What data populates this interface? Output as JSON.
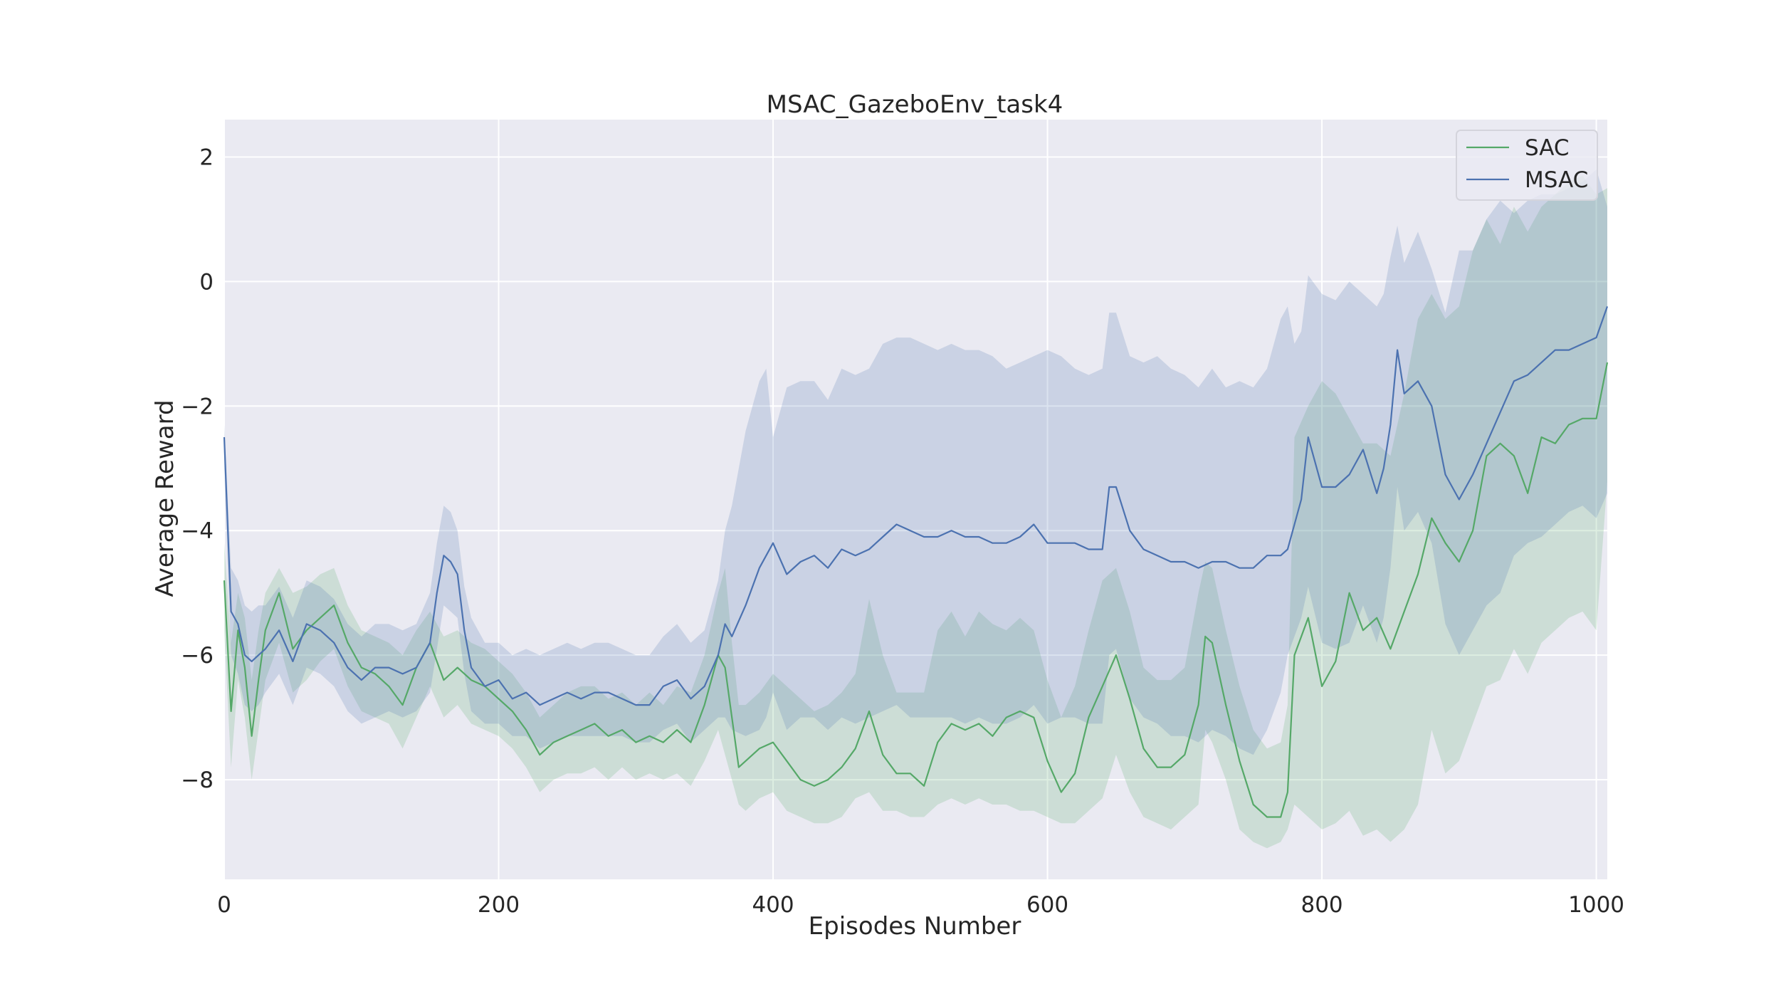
{
  "chart_data": {
    "type": "line",
    "title": "MSAC_GazeboEnv_task4",
    "xlabel": "Episodes Number",
    "ylabel": "Average Reward",
    "xlim": [
      0,
      1008
    ],
    "ylim": [
      -9.6,
      2.6
    ],
    "xticks": [
      0,
      200,
      400,
      600,
      800,
      1000
    ],
    "yticks": [
      -8,
      -6,
      -4,
      -2,
      0,
      2
    ],
    "grid": true,
    "legend_position": "top-right",
    "series": [
      {
        "name": "SAC",
        "color": "#55a868",
        "x": [
          0,
          5,
          10,
          15,
          20,
          25,
          30,
          40,
          50,
          60,
          70,
          80,
          90,
          100,
          110,
          120,
          130,
          140,
          150,
          160,
          170,
          180,
          190,
          200,
          210,
          220,
          230,
          240,
          250,
          260,
          270,
          280,
          290,
          300,
          310,
          320,
          330,
          340,
          350,
          360,
          365,
          370,
          375,
          380,
          390,
          400,
          410,
          420,
          430,
          440,
          450,
          460,
          470,
          480,
          490,
          500,
          510,
          520,
          530,
          540,
          550,
          560,
          570,
          580,
          590,
          600,
          610,
          620,
          630,
          640,
          650,
          660,
          670,
          680,
          690,
          700,
          710,
          715,
          720,
          730,
          740,
          750,
          760,
          770,
          775,
          780,
          790,
          800,
          810,
          820,
          830,
          840,
          850,
          860,
          870,
          880,
          890,
          900,
          910,
          920,
          930,
          940,
          950,
          960,
          970,
          980,
          990,
          1000,
          1008
        ],
        "values": [
          -4.8,
          -6.9,
          -5.6,
          -6.2,
          -7.3,
          -6.4,
          -5.6,
          -5.0,
          -5.9,
          -5.6,
          -5.4,
          -5.2,
          -5.8,
          -6.2,
          -6.3,
          -6.5,
          -6.8,
          -6.2,
          -5.8,
          -6.4,
          -6.2,
          -6.4,
          -6.5,
          -6.7,
          -6.9,
          -7.2,
          -7.6,
          -7.4,
          -7.3,
          -7.2,
          -7.1,
          -7.3,
          -7.2,
          -7.4,
          -7.3,
          -7.4,
          -7.2,
          -7.4,
          -6.8,
          -6.0,
          -6.2,
          -7.0,
          -7.8,
          -7.7,
          -7.5,
          -7.4,
          -7.7,
          -8.0,
          -8.1,
          -8.0,
          -7.8,
          -7.5,
          -6.9,
          -7.6,
          -7.9,
          -7.9,
          -8.1,
          -7.4,
          -7.1,
          -7.2,
          -7.1,
          -7.3,
          -7.0,
          -6.9,
          -7.0,
          -7.7,
          -8.2,
          -7.9,
          -7.0,
          -6.5,
          -6.0,
          -6.7,
          -7.5,
          -7.8,
          -7.8,
          -7.6,
          -6.8,
          -5.7,
          -5.8,
          -6.8,
          -7.7,
          -8.4,
          -8.6,
          -8.6,
          -8.2,
          -6.0,
          -5.4,
          -6.5,
          -6.1,
          -5.0,
          -5.6,
          -5.4,
          -5.9,
          -5.3,
          -4.7,
          -3.8,
          -4.2,
          -4.5,
          -4.0,
          -2.8,
          -2.6,
          -2.8,
          -3.4,
          -2.5,
          -2.6,
          -2.3,
          -2.2,
          -2.2,
          -1.3
        ],
        "band_upper": [
          -4.2,
          -5.8,
          -5.0,
          -5.4,
          -6.4,
          -5.6,
          -5.0,
          -4.6,
          -5.0,
          -4.9,
          -4.7,
          -4.6,
          -5.2,
          -5.6,
          -5.7,
          -5.8,
          -6.0,
          -5.6,
          -5.3,
          -5.7,
          -5.6,
          -5.8,
          -5.9,
          -6.1,
          -6.3,
          -6.6,
          -7.0,
          -6.8,
          -6.6,
          -6.5,
          -6.5,
          -6.7,
          -6.6,
          -6.8,
          -6.6,
          -6.8,
          -6.5,
          -6.6,
          -6.0,
          -5.0,
          -4.6,
          -5.8,
          -6.8,
          -6.8,
          -6.6,
          -6.3,
          -6.5,
          -6.7,
          -6.9,
          -6.8,
          -6.6,
          -6.3,
          -5.1,
          -6.0,
          -6.6,
          -6.6,
          -6.6,
          -5.6,
          -5.3,
          -5.7,
          -5.3,
          -5.5,
          -5.6,
          -5.4,
          -5.6,
          -6.4,
          -7.0,
          -6.5,
          -5.6,
          -4.8,
          -4.6,
          -5.3,
          -6.2,
          -6.4,
          -6.4,
          -6.2,
          -5.0,
          -4.5,
          -4.6,
          -5.6,
          -6.5,
          -7.2,
          -7.5,
          -7.4,
          -6.8,
          -2.5,
          -2.0,
          -1.6,
          -1.8,
          -2.2,
          -2.6,
          -2.6,
          -2.8,
          -1.8,
          -0.6,
          -0.2,
          -0.6,
          -0.4,
          0.5,
          1.0,
          0.6,
          1.2,
          0.8,
          1.2,
          1.4,
          1.6,
          1.7,
          1.4,
          1.5
        ],
        "band_lower": [
          -5.6,
          -7.8,
          -6.4,
          -7.0,
          -8.0,
          -7.2,
          -6.4,
          -5.8,
          -6.6,
          -6.4,
          -6.1,
          -5.9,
          -6.5,
          -6.9,
          -7.0,
          -7.1,
          -7.5,
          -7.0,
          -6.5,
          -7.0,
          -6.8,
          -7.1,
          -7.2,
          -7.3,
          -7.5,
          -7.8,
          -8.2,
          -8.0,
          -7.9,
          -7.9,
          -7.8,
          -8.0,
          -7.8,
          -8.0,
          -7.9,
          -8.0,
          -7.9,
          -8.1,
          -7.7,
          -7.2,
          -7.6,
          -8.0,
          -8.4,
          -8.5,
          -8.3,
          -8.2,
          -8.5,
          -8.6,
          -8.7,
          -8.7,
          -8.6,
          -8.3,
          -8.2,
          -8.5,
          -8.5,
          -8.6,
          -8.6,
          -8.4,
          -8.3,
          -8.4,
          -8.3,
          -8.4,
          -8.4,
          -8.5,
          -8.5,
          -8.6,
          -8.7,
          -8.7,
          -8.5,
          -8.3,
          -7.6,
          -8.2,
          -8.6,
          -8.7,
          -8.8,
          -8.6,
          -8.4,
          -7.2,
          -7.4,
          -8.0,
          -8.8,
          -9.0,
          -9.1,
          -9.0,
          -8.8,
          -8.4,
          -8.6,
          -8.8,
          -8.7,
          -8.5,
          -8.9,
          -8.8,
          -9.0,
          -8.8,
          -8.4,
          -7.2,
          -7.9,
          -7.7,
          -7.1,
          -6.5,
          -6.4,
          -5.9,
          -6.3,
          -5.8,
          -5.6,
          -5.4,
          -5.3,
          -5.6,
          -3.2
        ]
      },
      {
        "name": "MSAC",
        "color": "#4c72b0",
        "x": [
          0,
          5,
          10,
          15,
          20,
          25,
          30,
          40,
          50,
          60,
          70,
          80,
          90,
          100,
          110,
          120,
          130,
          140,
          150,
          155,
          160,
          165,
          170,
          175,
          180,
          190,
          200,
          210,
          220,
          230,
          240,
          250,
          260,
          270,
          280,
          290,
          300,
          310,
          320,
          330,
          340,
          350,
          360,
          365,
          370,
          380,
          390,
          395,
          400,
          410,
          420,
          430,
          440,
          450,
          460,
          470,
          480,
          490,
          500,
          510,
          520,
          530,
          540,
          550,
          560,
          570,
          580,
          590,
          600,
          610,
          620,
          630,
          640,
          645,
          650,
          660,
          670,
          680,
          690,
          700,
          710,
          720,
          730,
          740,
          750,
          760,
          770,
          775,
          780,
          785,
          790,
          800,
          810,
          820,
          830,
          840,
          845,
          850,
          855,
          860,
          870,
          880,
          890,
          900,
          910,
          920,
          930,
          940,
          950,
          960,
          970,
          980,
          990,
          1000,
          1008
        ],
        "values": [
          -2.5,
          -5.3,
          -5.5,
          -6.0,
          -6.1,
          -6.0,
          -5.9,
          -5.6,
          -6.1,
          -5.5,
          -5.6,
          -5.8,
          -6.2,
          -6.4,
          -6.2,
          -6.2,
          -6.3,
          -6.2,
          -5.8,
          -5.0,
          -4.4,
          -4.5,
          -4.7,
          -5.6,
          -6.2,
          -6.5,
          -6.4,
          -6.7,
          -6.6,
          -6.8,
          -6.7,
          -6.6,
          -6.7,
          -6.6,
          -6.6,
          -6.7,
          -6.8,
          -6.8,
          -6.5,
          -6.4,
          -6.7,
          -6.5,
          -6.0,
          -5.5,
          -5.7,
          -5.2,
          -4.6,
          -4.4,
          -4.2,
          -4.7,
          -4.5,
          -4.4,
          -4.6,
          -4.3,
          -4.4,
          -4.3,
          -4.1,
          -3.9,
          -4.0,
          -4.1,
          -4.1,
          -4.0,
          -4.1,
          -4.1,
          -4.2,
          -4.2,
          -4.1,
          -3.9,
          -4.2,
          -4.2,
          -4.2,
          -4.3,
          -4.3,
          -3.3,
          -3.3,
          -4.0,
          -4.3,
          -4.4,
          -4.5,
          -4.5,
          -4.6,
          -4.5,
          -4.5,
          -4.6,
          -4.6,
          -4.4,
          -4.4,
          -4.3,
          -3.9,
          -3.5,
          -2.5,
          -3.3,
          -3.3,
          -3.1,
          -2.7,
          -3.4,
          -3.0,
          -2.3,
          -1.1,
          -1.8,
          -1.6,
          -2.0,
          -3.1,
          -3.5,
          -3.1,
          -2.6,
          -2.1,
          -1.6,
          -1.5,
          -1.3,
          -1.1,
          -1.1,
          -1.0,
          -0.9,
          -0.4
        ],
        "band_upper": [
          -2.3,
          -4.6,
          -4.8,
          -5.2,
          -5.3,
          -5.2,
          -5.2,
          -4.9,
          -5.4,
          -4.8,
          -4.9,
          -5.1,
          -5.5,
          -5.7,
          -5.5,
          -5.5,
          -5.6,
          -5.5,
          -5.0,
          -4.2,
          -3.6,
          -3.7,
          -4.0,
          -4.9,
          -5.4,
          -5.8,
          -5.8,
          -6.0,
          -5.9,
          -6.0,
          -5.9,
          -5.8,
          -5.9,
          -5.8,
          -5.8,
          -5.9,
          -6.0,
          -6.0,
          -5.7,
          -5.5,
          -5.8,
          -5.6,
          -4.8,
          -4.0,
          -3.6,
          -2.4,
          -1.6,
          -1.4,
          -2.5,
          -1.7,
          -1.6,
          -1.6,
          -1.9,
          -1.4,
          -1.5,
          -1.4,
          -1.0,
          -0.9,
          -0.9,
          -1.0,
          -1.1,
          -1.0,
          -1.1,
          -1.1,
          -1.2,
          -1.4,
          -1.3,
          -1.2,
          -1.1,
          -1.2,
          -1.4,
          -1.5,
          -1.4,
          -0.5,
          -0.5,
          -1.2,
          -1.3,
          -1.2,
          -1.4,
          -1.5,
          -1.7,
          -1.4,
          -1.7,
          -1.6,
          -1.7,
          -1.4,
          -0.6,
          -0.4,
          -1.0,
          -0.8,
          0.1,
          -0.2,
          -0.3,
          0.0,
          -0.2,
          -0.4,
          -0.2,
          0.4,
          0.9,
          0.3,
          0.8,
          0.2,
          -0.5,
          0.5,
          0.5,
          1.0,
          1.3,
          1.1,
          1.3,
          1.4,
          1.4,
          1.5,
          1.6,
          1.8,
          1.2
        ],
        "band_lower": [
          -3.0,
          -6.0,
          -6.3,
          -6.8,
          -6.9,
          -6.8,
          -6.6,
          -6.3,
          -6.8,
          -6.2,
          -6.3,
          -6.5,
          -6.9,
          -7.1,
          -7.0,
          -6.9,
          -7.0,
          -6.9,
          -6.6,
          -5.9,
          -5.2,
          -5.3,
          -5.4,
          -6.3,
          -6.9,
          -7.1,
          -7.1,
          -7.3,
          -7.3,
          -7.5,
          -7.4,
          -7.3,
          -7.3,
          -7.3,
          -7.3,
          -7.3,
          -7.4,
          -7.4,
          -7.2,
          -7.1,
          -7.4,
          -7.2,
          -7.0,
          -7.0,
          -7.2,
          -7.3,
          -7.2,
          -7.0,
          -6.6,
          -7.2,
          -7.0,
          -7.0,
          -7.2,
          -7.0,
          -7.1,
          -7.0,
          -6.9,
          -6.8,
          -7.0,
          -7.0,
          -7.0,
          -7.0,
          -7.1,
          -7.0,
          -7.1,
          -7.1,
          -7.0,
          -6.8,
          -7.1,
          -7.0,
          -7.0,
          -7.1,
          -7.1,
          -6.0,
          -5.9,
          -6.7,
          -7.0,
          -7.1,
          -7.3,
          -7.3,
          -7.4,
          -7.2,
          -7.3,
          -7.5,
          -7.6,
          -7.2,
          -6.6,
          -6.0,
          -5.7,
          -5.4,
          -4.9,
          -5.8,
          -5.9,
          -5.8,
          -5.2,
          -5.8,
          -5.4,
          -4.6,
          -3.3,
          -4.0,
          -3.7,
          -4.2,
          -5.5,
          -6.0,
          -5.6,
          -5.2,
          -5.0,
          -4.4,
          -4.2,
          -4.1,
          -3.9,
          -3.7,
          -3.6,
          -3.8,
          -3.4
        ]
      }
    ]
  }
}
